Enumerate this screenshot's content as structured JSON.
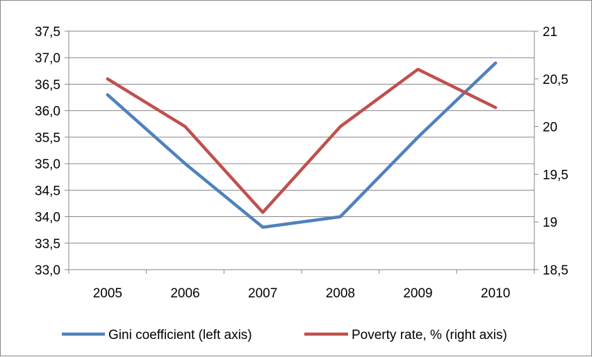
{
  "chart_data": {
    "type": "line",
    "title": "",
    "categories": [
      "2005",
      "2006",
      "2007",
      "2008",
      "2009",
      "2010"
    ],
    "left_axis": {
      "range": [
        33.0,
        37.5
      ],
      "ticks": [
        "33,0",
        "33,5",
        "34,0",
        "34,5",
        "35,0",
        "35,5",
        "36,0",
        "36,5",
        "37,0",
        "37,5"
      ]
    },
    "right_axis": {
      "range": [
        18.5,
        21
      ],
      "ticks": [
        "18,5",
        "19",
        "19,5",
        "20",
        "20,5",
        "21"
      ]
    },
    "grid": "horizontal",
    "legend_position": "bottom",
    "series": [
      {
        "name": "Gini coefficient (left axis)",
        "axis": "left",
        "color": "#4F81BD",
        "values": [
          36.3,
          35.0,
          33.8,
          34.0,
          35.5,
          36.9
        ]
      },
      {
        "name": "Poverty rate, % (right axis)",
        "axis": "right",
        "color": "#C0504D",
        "values": [
          20.5,
          20.0,
          19.1,
          20.0,
          20.6,
          20.2
        ]
      }
    ]
  }
}
